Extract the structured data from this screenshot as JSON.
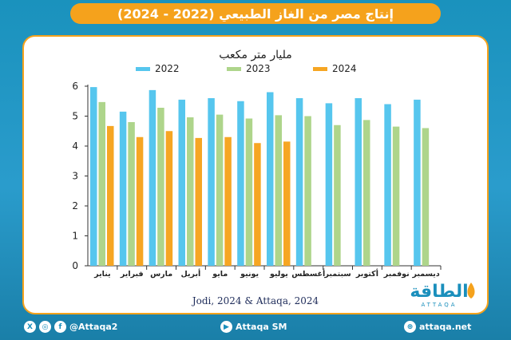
{
  "title": "إنتاج مصر من الغاز الطبيعي (2022 - 2024)",
  "colors": {
    "accent": "#f5a21c",
    "background": "#1e8fb8",
    "series_2022": "#56c6ee",
    "series_2023": "#aed58b",
    "series_2024": "#f6a623"
  },
  "chart_data": {
    "type": "bar",
    "title": "مليار متر مكعب",
    "categories": [
      "يناير",
      "فبراير",
      "مارس",
      "أبريل",
      "مايو",
      "يونيو",
      "يوليو",
      "أغسطس",
      "سبتمبر",
      "أكتوبر",
      "نوفمبر",
      "ديسمبر"
    ],
    "category_order": "right-to-left",
    "series": [
      {
        "name": "2022",
        "values": [
          5.97,
          5.15,
          5.87,
          5.55,
          5.6,
          5.5,
          5.8,
          5.6,
          5.43,
          5.6,
          5.4,
          5.55
        ]
      },
      {
        "name": "2023",
        "values": [
          5.47,
          4.8,
          5.28,
          4.96,
          5.05,
          4.92,
          5.03,
          5.0,
          4.7,
          4.87,
          4.65,
          4.6
        ]
      },
      {
        "name": "2024",
        "values": [
          4.67,
          4.3,
          4.5,
          4.27,
          4.3,
          4.1,
          4.15,
          null,
          null,
          null,
          null,
          null
        ]
      }
    ],
    "ylim": [
      0,
      6
    ],
    "yticks": [
      0,
      1,
      2,
      3,
      4,
      5,
      6
    ],
    "grid": false,
    "legend": "top"
  },
  "source": "Jodi, 2024 & Attaqa, 2024",
  "footer": {
    "social_handle": "@Attaqa2",
    "youtube": "Attaqa SM",
    "website": "attaqa.net"
  },
  "logo": {
    "arabic": "الطاقة",
    "latin": "ATTAQA"
  }
}
